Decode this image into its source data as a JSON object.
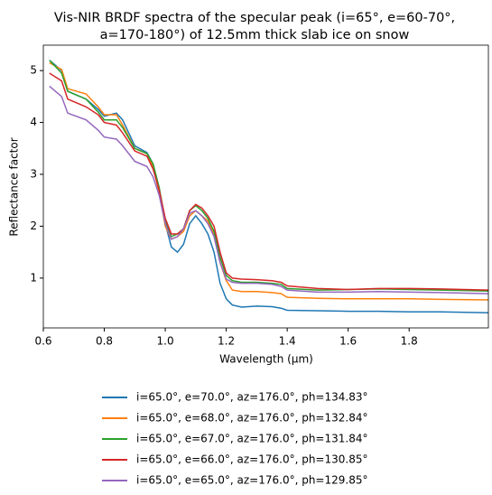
{
  "chart_data": {
    "type": "line",
    "title": [
      "Vis-NIR BRDF spectra of the specular peak (i=65°, e=60-70°,",
      "a=170-180°) of 12.5mm thick slab ice on snow"
    ],
    "x_label": "Wavelength (μm)",
    "y_label": "Reflectance factor",
    "x": [
      0.62,
      0.66,
      0.68,
      0.74,
      0.78,
      0.8,
      0.84,
      0.86,
      0.9,
      0.94,
      0.96,
      0.98,
      1.0,
      1.02,
      1.04,
      1.06,
      1.08,
      1.1,
      1.12,
      1.14,
      1.16,
      1.18,
      1.2,
      1.22,
      1.25,
      1.3,
      1.35,
      1.38,
      1.4,
      1.5,
      1.6,
      1.7,
      1.8,
      1.9,
      2.06
    ],
    "series": [
      {
        "name": "i=65.0°, e=70.0°, az=176.0°, ph=134.83°",
        "color": "#1f77b4",
        "values": [
          5.2,
          5.0,
          4.6,
          4.45,
          4.25,
          4.12,
          4.18,
          4.05,
          3.55,
          3.42,
          3.2,
          2.7,
          2.05,
          1.6,
          1.5,
          1.65,
          2.05,
          2.2,
          2.05,
          1.85,
          1.5,
          0.9,
          0.6,
          0.48,
          0.44,
          0.46,
          0.45,
          0.42,
          0.38,
          0.37,
          0.36,
          0.36,
          0.35,
          0.35,
          0.33
        ]
      },
      {
        "name": "i=65.0°, e=68.0°, az=176.0°, ph=132.84°",
        "color": "#ff7f0e",
        "values": [
          5.15,
          5.02,
          4.65,
          4.55,
          4.3,
          4.15,
          4.15,
          3.95,
          3.5,
          3.4,
          3.15,
          2.65,
          2.0,
          1.75,
          1.8,
          1.9,
          2.2,
          2.3,
          2.2,
          2.1,
          1.85,
          1.3,
          0.95,
          0.77,
          0.74,
          0.74,
          0.72,
          0.7,
          0.63,
          0.61,
          0.6,
          0.6,
          0.6,
          0.59,
          0.58
        ]
      },
      {
        "name": "i=65.0°, e=67.0°, az=176.0°, ph=131.84°",
        "color": "#2ca02c",
        "values": [
          5.2,
          4.95,
          4.6,
          4.45,
          4.2,
          4.05,
          4.05,
          3.9,
          3.5,
          3.4,
          3.2,
          2.75,
          2.1,
          1.8,
          1.85,
          1.95,
          2.3,
          2.4,
          2.3,
          2.15,
          1.9,
          1.4,
          1.05,
          0.95,
          0.92,
          0.92,
          0.9,
          0.88,
          0.8,
          0.77,
          0.78,
          0.79,
          0.78,
          0.77,
          0.75
        ]
      },
      {
        "name": "i=65.0°, e=66.0°, az=176.0°, ph=130.85°",
        "color": "#d62728",
        "values": [
          4.95,
          4.8,
          4.45,
          4.3,
          4.15,
          4.0,
          3.95,
          3.8,
          3.45,
          3.35,
          3.1,
          2.7,
          2.15,
          1.85,
          1.85,
          1.95,
          2.3,
          2.42,
          2.35,
          2.2,
          2.0,
          1.5,
          1.1,
          1.0,
          0.98,
          0.97,
          0.95,
          0.92,
          0.85,
          0.8,
          0.78,
          0.8,
          0.8,
          0.79,
          0.77
        ]
      },
      {
        "name": "i=65.0°, e=65.0°, az=176.0°, ph=129.85°",
        "color": "#9467bd",
        "values": [
          4.7,
          4.5,
          4.18,
          4.05,
          3.85,
          3.72,
          3.68,
          3.55,
          3.25,
          3.15,
          2.95,
          2.6,
          2.05,
          1.75,
          1.8,
          1.95,
          2.25,
          2.3,
          2.2,
          2.05,
          1.8,
          1.3,
          0.98,
          0.92,
          0.9,
          0.9,
          0.88,
          0.84,
          0.77,
          0.73,
          0.73,
          0.74,
          0.73,
          0.72,
          0.7
        ]
      }
    ],
    "xlim": [
      0.6,
      2.06
    ],
    "ylim": [
      0.04,
      5.49
    ],
    "xticks": [
      0.6,
      0.8,
      {
        "value": 1,
        "label": "1.0"
      },
      1.2,
      1.4,
      1.6,
      1.8
    ],
    "yticks": [
      1,
      2,
      3,
      4,
      5
    ],
    "legend": "lower center outside"
  }
}
